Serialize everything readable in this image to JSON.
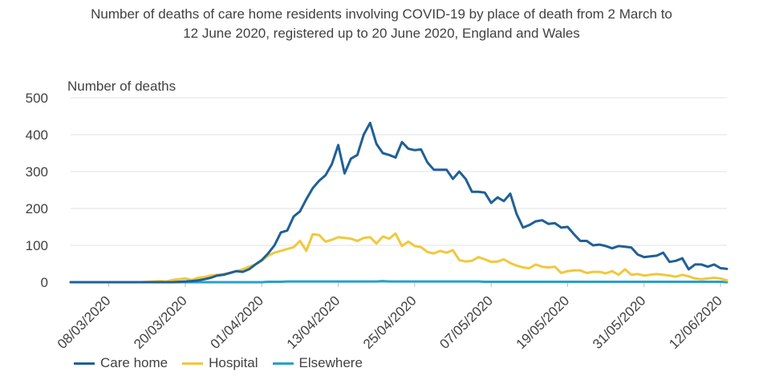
{
  "chart_data": {
    "type": "line",
    "title_line1": "Number of deaths of care home residents involving COVID-19 by place of death from 2 March to",
    "title_line2": "12 June 2020, registered up to 20 June 2020, England and Wales",
    "ylabel": "Number of deaths",
    "ylim": [
      0,
      500
    ],
    "yticks": [
      "0",
      "100",
      "200",
      "300",
      "400",
      "500"
    ],
    "x_start": "02/03/2020",
    "x_end": "12/06/2020",
    "xtick_labels": [
      "08/03/2020",
      "20/03/2020",
      "01/04/2020",
      "13/04/2020",
      "25/04/2020",
      "07/05/2020",
      "19/05/2020",
      "31/05/2020",
      "12/06/2020"
    ],
    "grid": "horizontal",
    "legend_position": "bottom",
    "series": [
      {
        "name": "Care home",
        "color": "#206095",
        "values": [
          0,
          0,
          0,
          0,
          0,
          0,
          0,
          0,
          0,
          0,
          0,
          0,
          0,
          0,
          0,
          0,
          0,
          1,
          2,
          3,
          5,
          8,
          12,
          18,
          20,
          25,
          30,
          28,
          35,
          48,
          60,
          78,
          100,
          135,
          140,
          178,
          192,
          225,
          255,
          275,
          290,
          320,
          372,
          295,
          335,
          345,
          400,
          432,
          375,
          350,
          345,
          338,
          380,
          362,
          358,
          360,
          325,
          305,
          305,
          305,
          280,
          300,
          280,
          245,
          245,
          243,
          215,
          230,
          220,
          240,
          185,
          148,
          155,
          165,
          168,
          158,
          160,
          148,
          150,
          130,
          112,
          112,
          100,
          102,
          98,
          92,
          98,
          96,
          94,
          75,
          68,
          70,
          72,
          80,
          55,
          58,
          65,
          35,
          48,
          48,
          42,
          48,
          38,
          36
        ]
      },
      {
        "name": "Hospital",
        "color": "#f0c83c",
        "values": [
          0,
          0,
          0,
          0,
          0,
          0,
          0,
          0,
          0,
          0,
          0,
          0,
          1,
          2,
          3,
          2,
          6,
          8,
          10,
          6,
          12,
          14,
          18,
          20,
          22,
          25,
          30,
          35,
          42,
          48,
          58,
          72,
          80,
          85,
          90,
          95,
          112,
          85,
          130,
          128,
          110,
          115,
          122,
          120,
          118,
          112,
          120,
          122,
          105,
          124,
          118,
          132,
          98,
          110,
          98,
          95,
          82,
          78,
          85,
          80,
          87,
          60,
          56,
          58,
          68,
          62,
          55,
          56,
          62,
          52,
          45,
          40,
          38,
          48,
          42,
          40,
          42,
          25,
          30,
          32,
          32,
          25,
          28,
          28,
          24,
          30,
          20,
          35,
          20,
          22,
          18,
          20,
          22,
          20,
          18,
          15,
          20,
          16,
          10,
          8,
          10,
          12,
          10,
          5
        ]
      },
      {
        "name": "Elsewhere",
        "color": "#27a0cc",
        "values": [
          0,
          0,
          0,
          0,
          0,
          0,
          0,
          0,
          0,
          0,
          0,
          0,
          0,
          0,
          0,
          0,
          0,
          0,
          0,
          0,
          0,
          0,
          0,
          0,
          0,
          0,
          0,
          0,
          0,
          0,
          0,
          1,
          1,
          1,
          2,
          2,
          2,
          2,
          2,
          2,
          2,
          2,
          2,
          2,
          2,
          2,
          2,
          2,
          2,
          3,
          2,
          2,
          2,
          2,
          2,
          2,
          2,
          2,
          2,
          2,
          2,
          2,
          2,
          2,
          2,
          1,
          1,
          1,
          1,
          1,
          1,
          1,
          1,
          1,
          1,
          1,
          1,
          1,
          1,
          1,
          1,
          1,
          1,
          1,
          1,
          1,
          1,
          1,
          1,
          1,
          1,
          1,
          1,
          1,
          1,
          1,
          1,
          1,
          1,
          1,
          1,
          1,
          1,
          0
        ]
      }
    ]
  }
}
